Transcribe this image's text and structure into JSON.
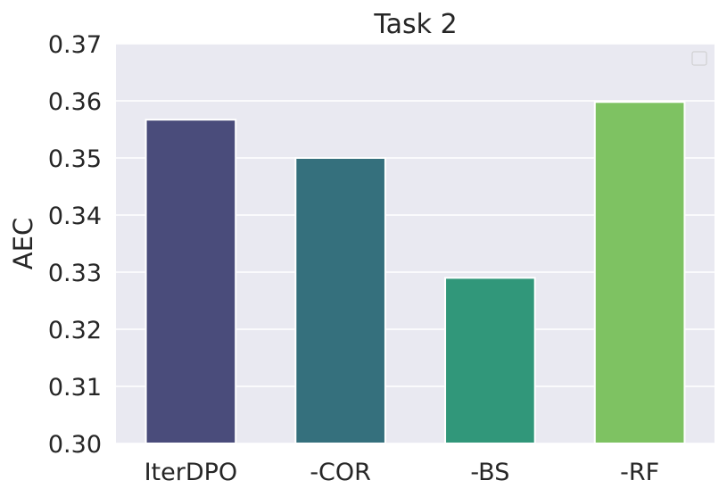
{
  "chart_data": {
    "type": "bar",
    "title": "Task 2",
    "xlabel": "",
    "ylabel": "AEC",
    "categories": [
      "IterDPO",
      "-COR",
      "-BS",
      "-RF"
    ],
    "values": [
      0.3567,
      0.35,
      0.329,
      0.3598
    ],
    "bar_colors": [
      "#4a4c7b",
      "#35707d",
      "#31977a",
      "#7ec262"
    ],
    "ylim": [
      0.3,
      0.37
    ],
    "yticks": [
      "0.30",
      "0.31",
      "0.32",
      "0.33",
      "0.34",
      "0.35",
      "0.36",
      "0.37"
    ],
    "grid": true,
    "background": "#e9e9f1",
    "legend": "top-right",
    "legend_entries": []
  }
}
